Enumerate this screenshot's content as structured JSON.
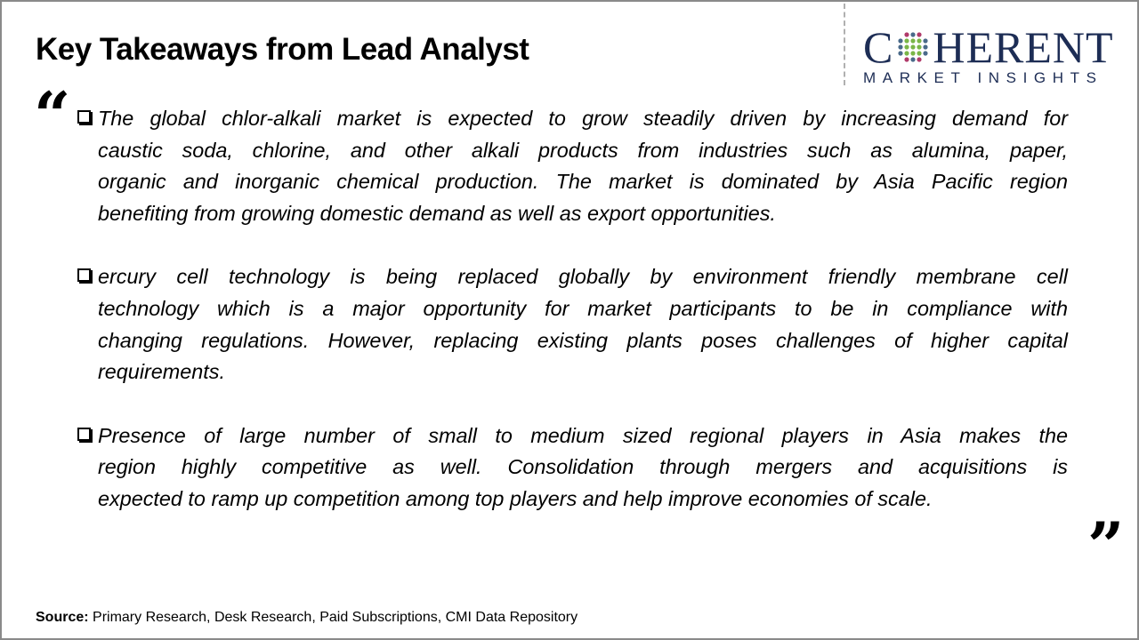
{
  "title": "Key Takeaways from Lead Analyst",
  "logo": {
    "main_left": "C",
    "main_right": "HERENT",
    "sub": "MARKET INSIGHTS",
    "color": "#1d2d55"
  },
  "bullets": [
    {
      "lines": [
        "The global chlor-alkali market is expected to grow steadily driven by increasing demand for",
        "caustic soda, chlorine, and other alkali products from industries such as alumina, paper,",
        "organic and inorganic chemical production. The market is dominated by Asia Pacific region",
        "benefiting from growing domestic demand as well as export opportunities."
      ]
    },
    {
      "lines": [
        "ercury cell technology is being replaced globally by environment friendly membrane cell",
        "technology which is a major opportunity for market participants to be in compliance with",
        "changing regulations. However, replacing existing plants poses challenges of higher capital",
        "requirements."
      ]
    },
    {
      "lines": [
        "Presence of large number of small to medium sized regional players in Asia makes the",
        "region highly competitive as well. Consolidation through mergers and acquisitions is",
        "expected to ramp up competition among top players and help improve economies of scale."
      ]
    }
  ],
  "source": {
    "label": "Source:",
    "text": " Primary Research, Desk Research, Paid Subscriptions, CMI Data Repository"
  },
  "icons": {
    "open": "quote-open-icon",
    "close": "quote-close-icon",
    "bullet": "checkbox-bullet-icon"
  }
}
